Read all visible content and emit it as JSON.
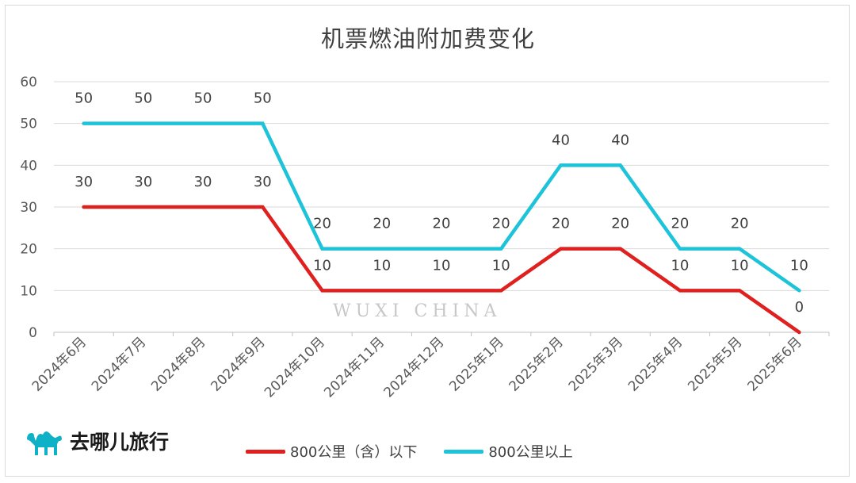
{
  "chart_data": {
    "type": "line",
    "title": "机票燃油附加费变化",
    "categories": [
      "2024年6月",
      "2024年7月",
      "2024年8月",
      "2024年9月",
      "2024年10月",
      "2024年11月",
      "2024年12月",
      "2025年1月",
      "2025年2月",
      "2025年3月",
      "2025年4月",
      "2025年5月",
      "2025年6月"
    ],
    "series": [
      {
        "name": "800公里（含）以下",
        "color": "#e01f1f",
        "values": [
          30,
          30,
          30,
          30,
          10,
          10,
          10,
          10,
          20,
          20,
          10,
          10,
          0
        ]
      },
      {
        "name": "800公里以上",
        "color": "#1dc3d9",
        "values": [
          50,
          50,
          50,
          50,
          20,
          20,
          20,
          20,
          40,
          40,
          20,
          20,
          10
        ]
      }
    ],
    "yticks": [
      0,
      10,
      20,
      30,
      40,
      50,
      60
    ],
    "ylim": [
      0,
      60
    ],
    "grid": true,
    "legend": "bottom",
    "data_labels": true
  },
  "brand": {
    "name": "去哪儿旅行",
    "icon": "camel-icon"
  },
  "watermark": {
    "text": "WUXI CHINA"
  }
}
